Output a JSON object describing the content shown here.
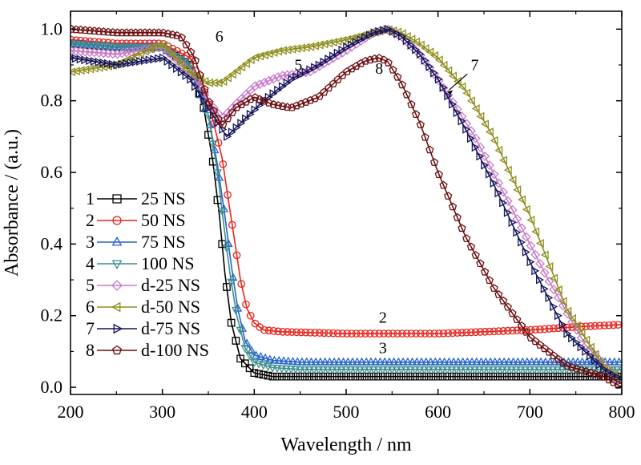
{
  "chart_data": {
    "type": "line",
    "xlabel": "Wavelength / nm",
    "ylabel": "Absorbance / (a.u.)",
    "xlim": [
      200,
      800
    ],
    "ylim": [
      -0.02,
      1.05
    ],
    "xticks": [
      200,
      300,
      400,
      500,
      600,
      700,
      800
    ],
    "yticks": [
      0.0,
      0.2,
      0.4,
      0.6,
      0.8,
      1.0
    ],
    "xtick_labels": [
      "200",
      "300",
      "400",
      "500",
      "600",
      "700",
      "800"
    ],
    "ytick_labels": [
      "0.0",
      "0.2",
      "0.4",
      "0.6",
      "0.8",
      "1.0"
    ],
    "grid": false,
    "legend_position": "left",
    "series": [
      {
        "name": "25 NS",
        "index": "1",
        "color": "#000000",
        "marker": "square",
        "x": [
          200,
          250,
          300,
          330,
          345,
          355,
          362,
          368,
          375,
          385,
          400,
          420,
          450,
          500,
          600,
          700,
          800
        ],
        "y": [
          0.96,
          0.95,
          0.95,
          0.9,
          0.78,
          0.63,
          0.48,
          0.32,
          0.18,
          0.08,
          0.04,
          0.03,
          0.03,
          0.03,
          0.03,
          0.03,
          0.03
        ]
      },
      {
        "name": "50 NS",
        "index": "2",
        "color": "#e8241c",
        "marker": "circle",
        "x": [
          200,
          250,
          300,
          330,
          350,
          365,
          372,
          378,
          385,
          392,
          400,
          410,
          430,
          500,
          600,
          700,
          760,
          800
        ],
        "y": [
          0.97,
          0.96,
          0.96,
          0.92,
          0.8,
          0.64,
          0.52,
          0.42,
          0.3,
          0.22,
          0.18,
          0.16,
          0.155,
          0.15,
          0.15,
          0.16,
          0.17,
          0.175
        ]
      },
      {
        "name": "75 NS",
        "index": "3",
        "color": "#2563c9",
        "marker": "triangle-up",
        "x": [
          200,
          250,
          300,
          330,
          350,
          360,
          368,
          375,
          382,
          390,
          400,
          420,
          450,
          500,
          600,
          700,
          800
        ],
        "y": [
          0.96,
          0.95,
          0.95,
          0.9,
          0.76,
          0.62,
          0.48,
          0.34,
          0.22,
          0.13,
          0.09,
          0.075,
          0.07,
          0.07,
          0.07,
          0.07,
          0.07
        ]
      },
      {
        "name": "100 NS",
        "index": "4",
        "color": "#3f8f8f",
        "marker": "triangle-down",
        "x": [
          200,
          250,
          300,
          330,
          350,
          360,
          367,
          374,
          381,
          390,
          400,
          420,
          450,
          500,
          600,
          700,
          800
        ],
        "y": [
          0.96,
          0.95,
          0.95,
          0.9,
          0.76,
          0.6,
          0.45,
          0.31,
          0.2,
          0.11,
          0.07,
          0.055,
          0.05,
          0.05,
          0.05,
          0.05,
          0.05
        ]
      },
      {
        "name": "d-25 NS",
        "index": "5",
        "color": "#c77bc7",
        "marker": "diamond",
        "x": [
          200,
          250,
          300,
          330,
          350,
          365,
          380,
          400,
          430,
          460,
          500,
          530,
          545,
          560,
          580,
          600,
          640,
          680,
          720,
          760,
          800
        ],
        "y": [
          0.94,
          0.93,
          0.95,
          0.88,
          0.8,
          0.75,
          0.79,
          0.84,
          0.87,
          0.88,
          0.94,
          0.99,
          1.0,
          0.98,
          0.93,
          0.86,
          0.7,
          0.5,
          0.3,
          0.12,
          0.01
        ]
      },
      {
        "name": "d-50 NS",
        "index": "6",
        "color": "#8f8f1f",
        "marker": "triangle-left",
        "x": [
          200,
          250,
          300,
          330,
          350,
          365,
          380,
          400,
          430,
          460,
          500,
          530,
          545,
          560,
          580,
          600,
          630,
          660,
          700,
          740,
          780,
          800
        ],
        "y": [
          0.88,
          0.9,
          0.96,
          0.88,
          0.85,
          0.85,
          0.88,
          0.92,
          0.94,
          0.95,
          0.97,
          0.99,
          1.0,
          0.99,
          0.96,
          0.92,
          0.83,
          0.7,
          0.48,
          0.22,
          0.06,
          0.02
        ]
      },
      {
        "name": "d-75 NS",
        "index": "7",
        "color": "#14145a",
        "marker": "triangle-right",
        "x": [
          200,
          250,
          300,
          330,
          350,
          370,
          390,
          410,
          440,
          470,
          500,
          530,
          545,
          560,
          580,
          600,
          630,
          660,
          700,
          740,
          780,
          800
        ],
        "y": [
          0.92,
          0.9,
          0.92,
          0.86,
          0.78,
          0.7,
          0.75,
          0.8,
          0.86,
          0.9,
          0.95,
          0.99,
          1.0,
          0.98,
          0.93,
          0.86,
          0.72,
          0.57,
          0.35,
          0.15,
          0.05,
          0.02
        ]
      },
      {
        "name": "d-100 NS",
        "index": "8",
        "color": "#6b0f0f",
        "marker": "pentagon",
        "x": [
          200,
          250,
          300,
          320,
          335,
          350,
          365,
          380,
          400,
          420,
          440,
          470,
          500,
          520,
          535,
          545,
          560,
          580,
          600,
          630,
          660,
          700,
          740,
          780,
          800
        ],
        "y": [
          1.0,
          0.99,
          0.99,
          0.98,
          0.92,
          0.8,
          0.73,
          0.78,
          0.81,
          0.79,
          0.78,
          0.81,
          0.88,
          0.91,
          0.92,
          0.91,
          0.85,
          0.74,
          0.6,
          0.42,
          0.28,
          0.14,
          0.06,
          0.03,
          0.0
        ]
      }
    ],
    "legend": [
      {
        "index": "1",
        "label": "25 NS"
      },
      {
        "index": "2",
        "label": "50 NS"
      },
      {
        "index": "3",
        "label": "75 NS"
      },
      {
        "index": "4",
        "label": "100 NS"
      },
      {
        "index": "5",
        "label": "d-25 NS"
      },
      {
        "index": "6",
        "label": "d-50 NS"
      },
      {
        "index": "7",
        "label": "d-75 NS"
      },
      {
        "index": "8",
        "label": "d-100 NS"
      }
    ],
    "annotations": [
      {
        "text": "6",
        "x": 362,
        "y": 0.965
      },
      {
        "text": "5",
        "x": 448,
        "y": 0.885
      },
      {
        "text": "8",
        "x": 536,
        "y": 0.875
      },
      {
        "text": "7",
        "x": 640,
        "y": 0.885
      },
      {
        "text": "2",
        "x": 540,
        "y": 0.18
      },
      {
        "text": "3",
        "x": 540,
        "y": 0.095
      }
    ]
  }
}
